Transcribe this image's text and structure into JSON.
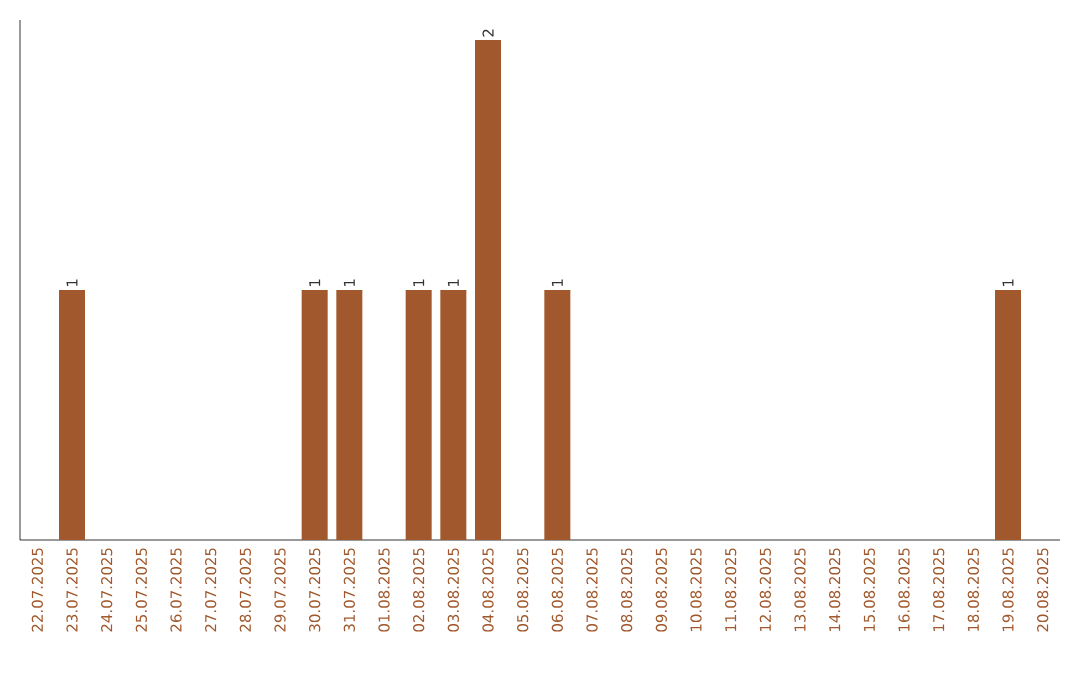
{
  "chart_data": {
    "type": "bar",
    "categories": [
      "22.07.2025",
      "23.07.2025",
      "24.07.2025",
      "25.07.2025",
      "26.07.2025",
      "27.07.2025",
      "28.07.2025",
      "29.07.2025",
      "30.07.2025",
      "31.07.2025",
      "01.08.2025",
      "02.08.2025",
      "03.08.2025",
      "04.08.2025",
      "05.08.2025",
      "06.08.2025",
      "07.08.2025",
      "08.08.2025",
      "09.08.2025",
      "10.08.2025",
      "11.08.2025",
      "12.08.2025",
      "13.08.2025",
      "14.08.2025",
      "15.08.2025",
      "16.08.2025",
      "17.08.2025",
      "18.08.2025",
      "19.08.2025",
      "20.08.2025"
    ],
    "values": [
      0,
      1,
      0,
      0,
      0,
      0,
      0,
      0,
      1,
      1,
      0,
      1,
      1,
      2,
      0,
      1,
      0,
      0,
      0,
      0,
      0,
      0,
      0,
      0,
      0,
      0,
      0,
      0,
      1,
      0
    ],
    "value_labels": [
      null,
      "1",
      null,
      null,
      null,
      null,
      null,
      null,
      "1",
      "1",
      null,
      "1",
      "1",
      "2",
      null,
      "1",
      null,
      null,
      null,
      null,
      null,
      null,
      null,
      null,
      null,
      null,
      null,
      null,
      "1",
      null
    ],
    "color": "#a0582c",
    "tick_labels": "x"
  }
}
